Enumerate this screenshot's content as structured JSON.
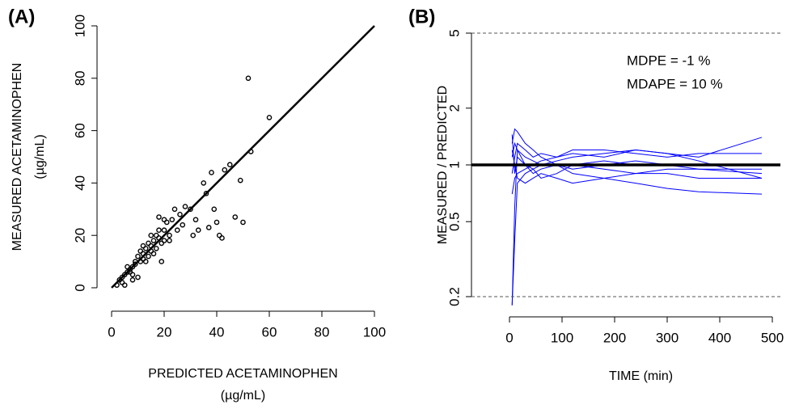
{
  "chart_data": [
    {
      "type": "scatter",
      "panel_label": "(A)",
      "xlabel": [
        "PREDICTED ACETAMINOPHEN",
        "(µg/mL)"
      ],
      "ylabel": [
        "MEASURED ACETAMINOPHEN",
        "(µg/mL)"
      ],
      "xlim": [
        0,
        100
      ],
      "ylim": [
        0,
        100
      ],
      "xticks": [
        0,
        20,
        40,
        60,
        80,
        100
      ],
      "yticks": [
        0,
        20,
        40,
        60,
        80,
        100
      ],
      "identity_line": true,
      "color": "#000000",
      "x": [
        2,
        3,
        4,
        4,
        5,
        5,
        6,
        6,
        7,
        7,
        8,
        8,
        9,
        9,
        10,
        10,
        11,
        11,
        12,
        12,
        13,
        13,
        14,
        14,
        15,
        15,
        16,
        16,
        17,
        17,
        18,
        18,
        19,
        19,
        20,
        20,
        21,
        22,
        23,
        24,
        25,
        26,
        27,
        28,
        30,
        31,
        32,
        33,
        35,
        36,
        37,
        38,
        39,
        40,
        41,
        42,
        43,
        45,
        47,
        49,
        50,
        52,
        53,
        60,
        15,
        12,
        18,
        22,
        20,
        8
      ],
      "y": [
        1,
        3,
        2,
        4,
        5,
        1,
        6,
        8,
        7,
        6,
        8,
        5,
        9,
        10,
        12,
        4,
        10,
        14,
        11,
        13,
        15,
        10,
        12,
        17,
        16,
        14,
        18,
        13,
        20,
        15,
        19,
        27,
        17,
        10,
        22,
        18,
        25,
        20,
        26,
        30,
        22,
        28,
        24,
        31,
        30,
        20,
        26,
        22,
        40,
        36,
        23,
        44,
        30,
        25,
        20,
        19,
        45,
        47,
        27,
        41,
        25,
        80,
        52,
        65,
        20,
        16,
        22,
        18,
        26,
        3
      ]
    },
    {
      "type": "line",
      "panel_label": "(B)",
      "log_y": true,
      "xlabel": "TIME (min)",
      "ylabel": "MEASURED / PREDICTED",
      "annotations": [
        "MDPE    = -1 %",
        "MDAPE  = 10 %"
      ],
      "xlim": [
        0,
        500
      ],
      "ylim": [
        0.2,
        5
      ],
      "xticks": [
        0,
        100,
        200,
        300,
        400,
        500
      ],
      "yticks": [
        0.2,
        0.5,
        1,
        2,
        5
      ],
      "reference_lines": [
        {
          "value": 0.2,
          "style": "dashed"
        },
        {
          "value": 1,
          "style": "bold"
        },
        {
          "value": 5,
          "style": "dashed"
        }
      ],
      "x": [
        5,
        10,
        15,
        30,
        45,
        60,
        90,
        120,
        180,
        240,
        300,
        360,
        480
      ],
      "series": [
        {
          "color": "#0000ff",
          "values": [
            1.45,
            0.9,
            1.1,
            1.0,
            0.95,
            1.0,
            1.05,
            1.1,
            1.15,
            1.2,
            1.15,
            1.1,
            1.4
          ]
        },
        {
          "color": "#0000ff",
          "values": [
            0.18,
            0.6,
            1.2,
            1.1,
            1.05,
            1.0,
            1.0,
            0.95,
            1.0,
            1.05,
            1.0,
            0.95,
            0.9
          ]
        },
        {
          "color": "#0000ff",
          "values": [
            1.3,
            1.55,
            1.5,
            1.3,
            1.2,
            1.1,
            1.0,
            0.9,
            0.85,
            0.8,
            0.75,
            0.72,
            0.7
          ]
        },
        {
          "color": "#0000ff",
          "values": [
            0.7,
            0.85,
            0.9,
            0.95,
            1.0,
            1.05,
            1.1,
            1.15,
            1.1,
            1.2,
            1.15,
            1.05,
            0.85
          ]
        },
        {
          "color": "#0000ff",
          "values": [
            1.1,
            1.3,
            1.2,
            1.0,
            0.9,
            0.95,
            1.0,
            1.0,
            0.95,
            0.9,
            0.95,
            0.95,
            0.95
          ]
        },
        {
          "color": "#0000ff",
          "values": [
            0.18,
            0.4,
            0.8,
            0.9,
            0.95,
            0.85,
            0.9,
            1.0,
            1.05,
            1.0,
            1.0,
            1.0,
            1.0
          ]
        },
        {
          "color": "#0000ff",
          "values": [
            1.2,
            1.0,
            0.85,
            0.8,
            0.85,
            0.9,
            0.85,
            0.8,
            0.85,
            0.9,
            0.9,
            0.85,
            0.85
          ]
        },
        {
          "color": "#0000ff",
          "values": [
            0.9,
            1.1,
            1.3,
            1.2,
            1.1,
            1.15,
            1.1,
            1.2,
            1.2,
            1.15,
            1.1,
            1.15,
            1.15
          ]
        }
      ]
    }
  ]
}
